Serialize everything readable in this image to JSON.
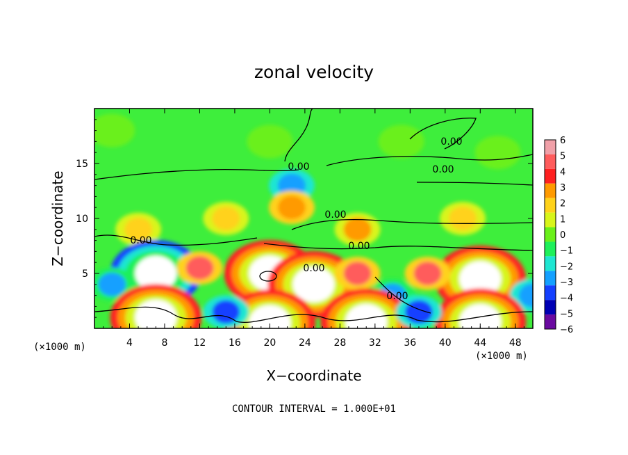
{
  "chart_data": {
    "type": "heatmap",
    "title": "zonal velocity",
    "xlabel": "X−coordinate",
    "ylabel": "Z−coordinate",
    "x_unit": "(×1000 m)",
    "y_unit": "(×1000 m)",
    "footer": "CONTOUR INTERVAL = 1.000E+01",
    "xlim": [
      0,
      50
    ],
    "ylim": [
      0,
      20
    ],
    "x_ticks": [
      "4",
      "8",
      "12",
      "16",
      "20",
      "24",
      "28",
      "32",
      "36",
      "40",
      "44",
      "48"
    ],
    "y_ticks": [
      "5",
      "10",
      "15"
    ],
    "colorbar": {
      "ticks": [
        "6",
        "5",
        "4",
        "3",
        "2",
        "1",
        "0",
        "−1",
        "−2",
        "−3",
        "−4",
        "−5",
        "−6"
      ],
      "levels": [
        6,
        5,
        4,
        3,
        2,
        1,
        0,
        -1,
        -2,
        -3,
        -4,
        -5,
        -6
      ],
      "colors": [
        "#f0a0a8",
        "#ff5c5c",
        "#ff2020",
        "#ff9a00",
        "#ffd21a",
        "#d8f51a",
        "#6af01a",
        "#1ef05a",
        "#1ee6d2",
        "#14a0ff",
        "#1440ff",
        "#0000b4",
        "#6a0aa0"
      ]
    },
    "contour_labels": [
      "0.00",
      "0.00",
      "0.00",
      "0.00",
      "0.00",
      "0.00",
      "0.00",
      "0.00"
    ],
    "features": [
      {
        "x": 2,
        "z": 18,
        "value": 0.2
      },
      {
        "x": 20,
        "z": 17,
        "value": -0.4
      },
      {
        "x": 35,
        "z": 17,
        "value": 0.1
      },
      {
        "x": 46,
        "z": 16,
        "value": -0.3
      },
      {
        "x": 22.5,
        "z": 13,
        "value": -3.2
      },
      {
        "x": 22.5,
        "z": 11,
        "value": 3.0
      },
      {
        "x": 5,
        "z": 9,
        "value": 2.3
      },
      {
        "x": 15,
        "z": 10,
        "value": 2.2
      },
      {
        "x": 30,
        "z": 9,
        "value": 2.5
      },
      {
        "x": 42,
        "z": 10,
        "value": 1.6
      },
      {
        "x": 7,
        "z": 5,
        "value": -9
      },
      {
        "x": 20,
        "z": 5,
        "value": 9
      },
      {
        "x": 25,
        "z": 4,
        "value": 8
      },
      {
        "x": 44,
        "z": 4.5,
        "value": 9
      },
      {
        "x": 12,
        "z": 5.5,
        "value": 4.5
      },
      {
        "x": 30,
        "z": 5,
        "value": 4.5
      },
      {
        "x": 38,
        "z": 5,
        "value": 4.5
      },
      {
        "x": 2,
        "z": 4,
        "value": -3
      },
      {
        "x": 34,
        "z": 3,
        "value": -3
      },
      {
        "x": 50,
        "z": 3,
        "value": -3.5
      },
      {
        "x": 7,
        "z": 1,
        "value": 9
      },
      {
        "x": 20,
        "z": 0.5,
        "value": 9
      },
      {
        "x": 31,
        "z": 0.6,
        "value": 8
      },
      {
        "x": 44,
        "z": 0.6,
        "value": 9
      },
      {
        "x": 15,
        "z": 1.5,
        "value": -4
      },
      {
        "x": 37,
        "z": 1.5,
        "value": -4
      }
    ]
  }
}
